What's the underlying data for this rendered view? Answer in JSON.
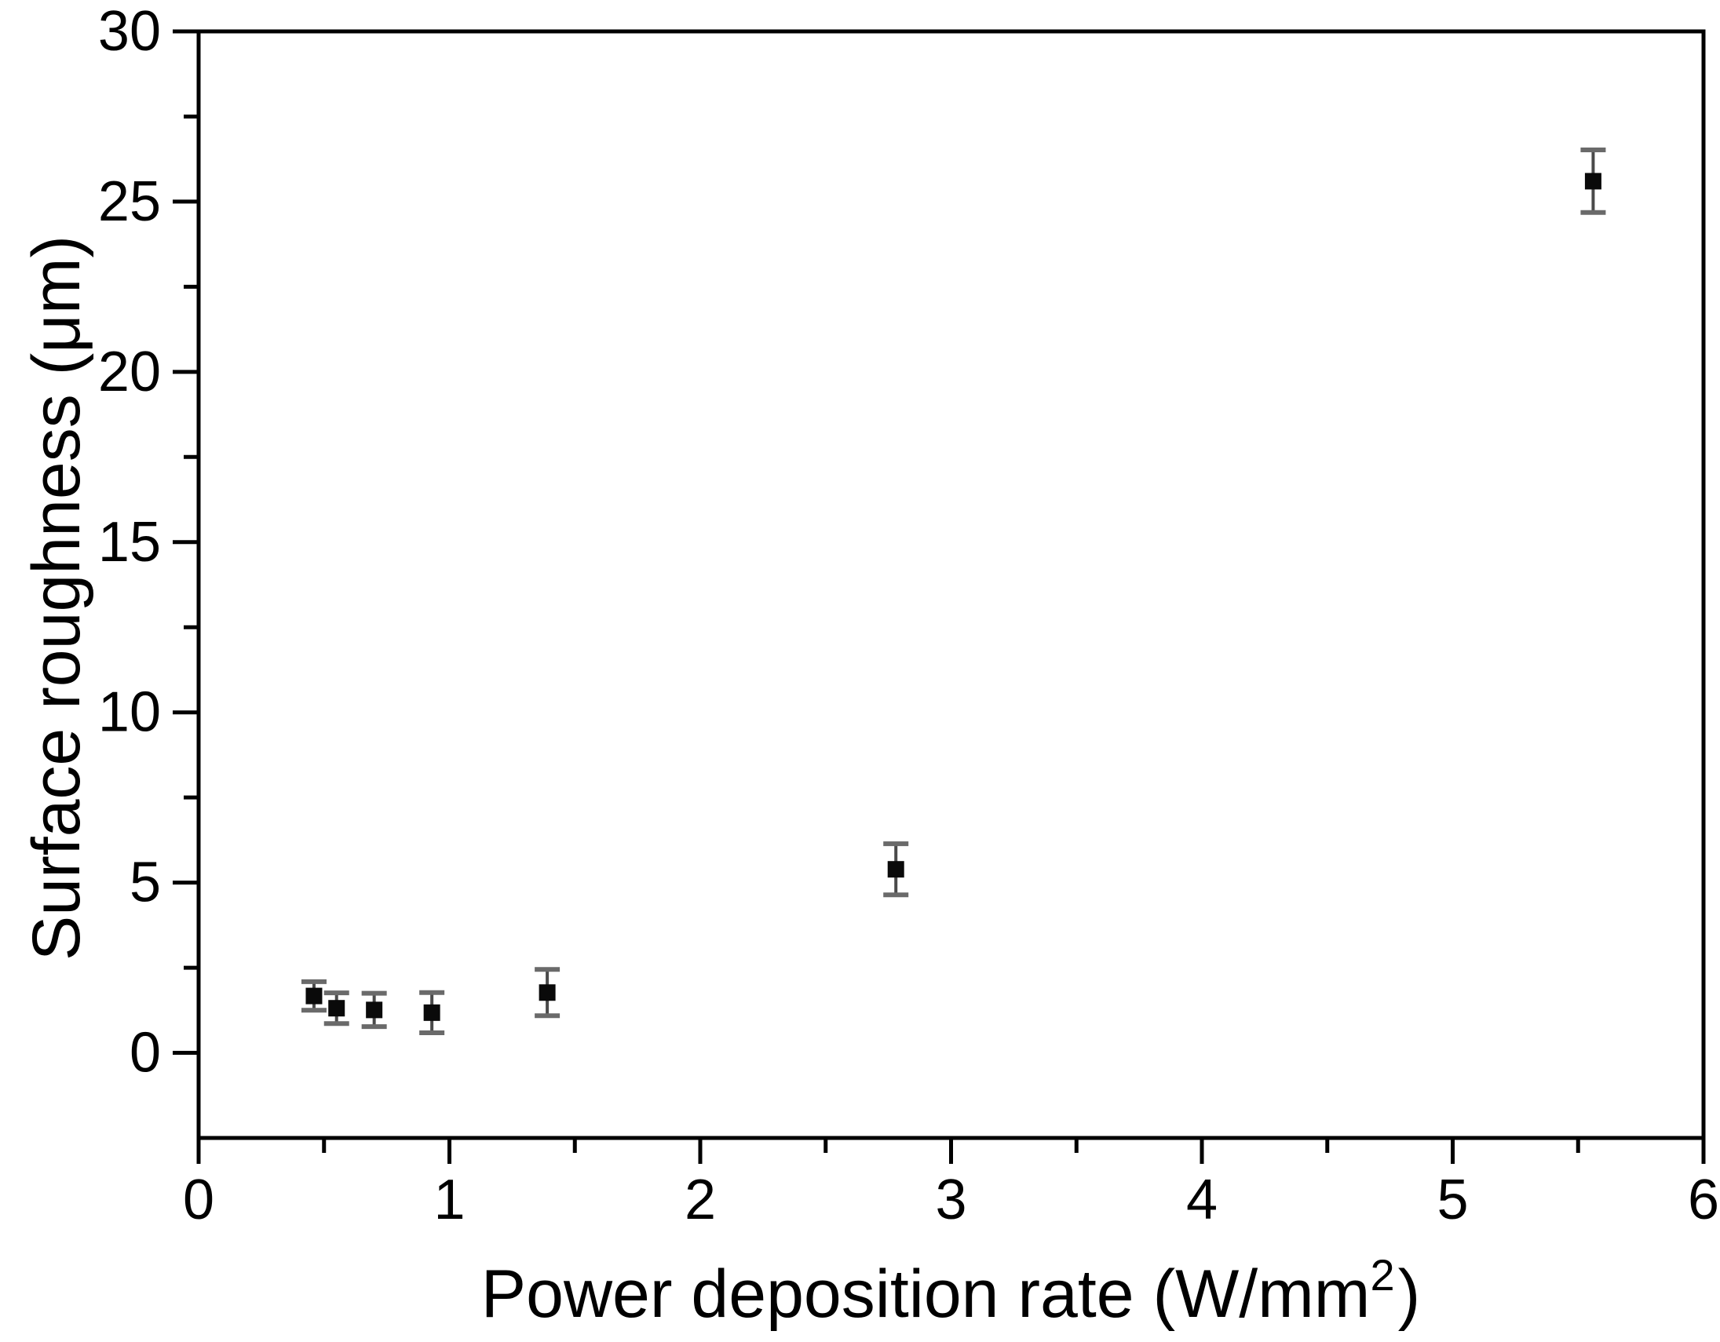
{
  "figure": {
    "background_color": "#ffffff",
    "frame_color": "#000000",
    "tick_color": "#000000",
    "tick_label_color": "#000000",
    "marker_color": "#0a0a0a",
    "errorbar_stem_color": "#4a4a4a",
    "errorbar_cap_color": "#6a6a6a"
  },
  "chart_data": {
    "type": "scatter",
    "title": "",
    "xlabel_main": "Power deposition rate (W/mm",
    "xlabel_sup": "2",
    "xlabel_end": ")",
    "ylabel": "Surface roughness (μm)",
    "xlim": [
      0,
      6
    ],
    "ylim": [
      -2.5,
      30
    ],
    "x_major_ticks": [
      0,
      1,
      2,
      3,
      4,
      5,
      6
    ],
    "x_tick_labels": [
      "0",
      "1",
      "2",
      "3",
      "4",
      "5",
      "6"
    ],
    "x_minor_step": 0.5,
    "y_major_ticks": [
      0,
      5,
      10,
      15,
      20,
      25,
      30
    ],
    "y_tick_labels": [
      "0",
      "5",
      "10",
      "15",
      "20",
      "25",
      "30"
    ],
    "y_minor_step": 2.5,
    "grid": false,
    "legend": false,
    "marker": "square",
    "series": [
      {
        "name": "surface-roughness",
        "points": [
          {
            "x": 0.46,
            "y": 1.67,
            "err": 0.42
          },
          {
            "x": 0.55,
            "y": 1.31,
            "err": 0.45
          },
          {
            "x": 0.7,
            "y": 1.26,
            "err": 0.49
          },
          {
            "x": 0.93,
            "y": 1.18,
            "err": 0.59
          },
          {
            "x": 1.39,
            "y": 1.77,
            "err": 0.68
          },
          {
            "x": 2.78,
            "y": 5.39,
            "err": 0.75
          },
          {
            "x": 5.56,
            "y": 25.6,
            "err": 0.92
          }
        ]
      }
    ]
  }
}
